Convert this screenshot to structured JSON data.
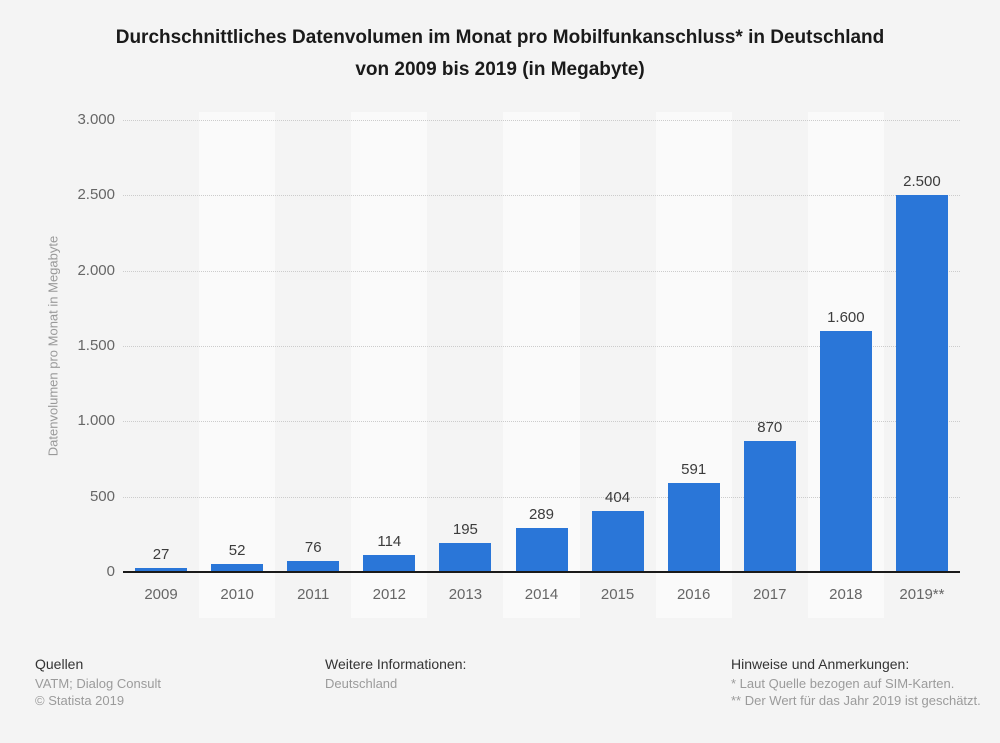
{
  "title": {
    "line1": "Durchschnittliches Datenvolumen im Monat pro Mobilfunkanschluss* in Deutschland",
    "line2": "von 2009 bis 2019 (in Megabyte)"
  },
  "chart_data": {
    "type": "bar",
    "title": "Durchschnittliches Datenvolumen im Monat pro Mobilfunkanschluss* in Deutschland von 2009 bis 2019 (in Megabyte)",
    "categories": [
      "2009",
      "2010",
      "2011",
      "2012",
      "2013",
      "2014",
      "2015",
      "2016",
      "2017",
      "2018",
      "2019**"
    ],
    "values": [
      27,
      52,
      76,
      114,
      195,
      289,
      404,
      591,
      870,
      1600,
      2500
    ],
    "value_labels": [
      "27",
      "52",
      "76",
      "114",
      "195",
      "289",
      "404",
      "591",
      "870",
      "1.600",
      "2.500"
    ],
    "xlabel": "",
    "ylabel": "Datenvolumen pro Monat in Megabyte",
    "ylim": [
      0,
      3000
    ],
    "yticks": {
      "values": [
        0,
        500,
        1000,
        1500,
        2000,
        2500,
        3000
      ],
      "labels": [
        "0",
        "500",
        "1.000",
        "1.500",
        "2.000",
        "2.500",
        "3.000"
      ]
    },
    "grid": "horizontal-dotted",
    "legend": "none",
    "bar_color": "#2a76d8",
    "alt_band_color": "#fafafa"
  },
  "footer": {
    "sources": {
      "heading": "Quellen",
      "line1": "VATM; Dialog Consult",
      "line2": "© Statista 2019"
    },
    "info": {
      "heading": "Weitere Informationen:",
      "line1": "Deutschland"
    },
    "notes": {
      "heading": "Hinweise und Anmerkungen:",
      "line1": "* Laut Quelle bezogen auf SIM-Karten.",
      "line2": "** Der Wert für das Jahr 2019 ist geschätzt."
    }
  },
  "colors": {
    "page_bg": "#f4f4f4",
    "bar": "#2a76d8",
    "gridline": "#cccccc",
    "axis": "#1a1a1a",
    "tick_text": "#666666",
    "value_text": "#3c3c3c",
    "footer_text": "#9b9b9b"
  }
}
